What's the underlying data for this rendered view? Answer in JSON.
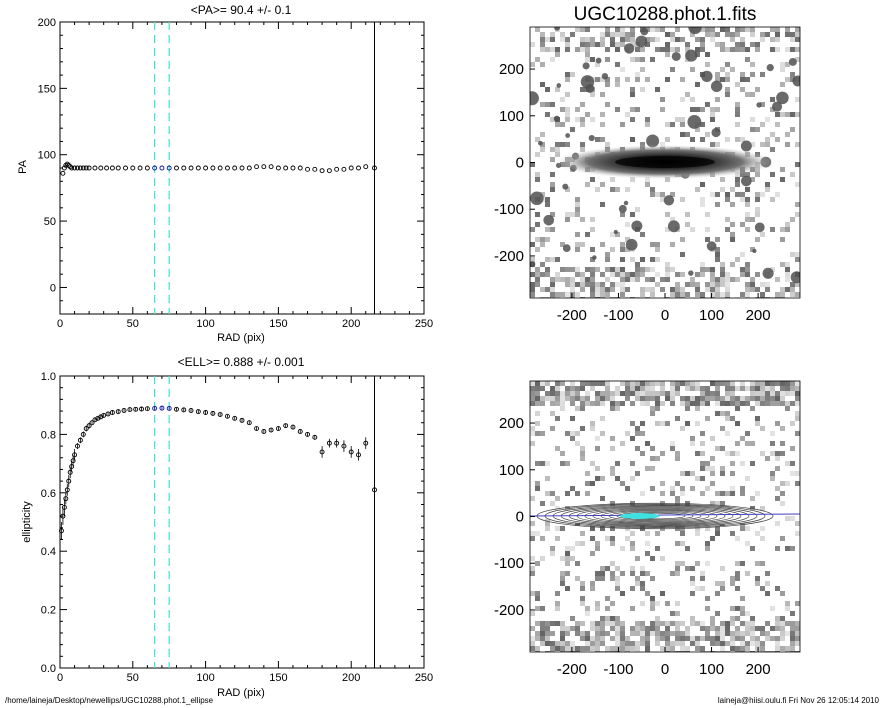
{
  "footer": {
    "path": "/home/laineja/Desktop/newellips/UGC10288.phot.1_ellipse",
    "user_time": "laineja@hiisi.oulu.fi  Fri Nov 26 12:05:14 2010"
  },
  "colors": {
    "axes": "#000000",
    "cut_lines": "#40e0d0",
    "fit_points": "#1010a0",
    "image_bg": "#808080",
    "contours": "#404040",
    "major_axis_line": "#4040c0",
    "image_center": "#40e0e0"
  },
  "chart_data": [
    {
      "type": "scatter",
      "title": "<PA>=  90.4 +/-   0.1",
      "xlabel": "RAD (pix)",
      "ylabel": "PA",
      "xlim": [
        0,
        250
      ],
      "ylim": [
        -20,
        200
      ],
      "xticks": [
        0,
        50,
        100,
        150,
        200,
        250
      ],
      "yticks": [
        0,
        50,
        100,
        150,
        200
      ],
      "dashed_vlines": [
        65,
        75
      ],
      "solid_vline": 216,
      "highlight_range": [
        65,
        75
      ],
      "x": [
        2,
        3,
        4,
        5,
        6,
        7,
        8,
        10,
        12,
        14,
        16,
        18,
        20,
        24,
        28,
        32,
        36,
        40,
        45,
        50,
        55,
        60,
        65,
        70,
        75,
        80,
        85,
        90,
        95,
        100,
        105,
        110,
        115,
        120,
        125,
        130,
        135,
        140,
        145,
        150,
        155,
        160,
        165,
        170,
        175,
        180,
        185,
        190,
        195,
        200,
        205,
        210,
        216
      ],
      "values": [
        86,
        90,
        92,
        93,
        92,
        91,
        90,
        90,
        90,
        90,
        90,
        90,
        90,
        90,
        90,
        90,
        90,
        90,
        90,
        90,
        90,
        90,
        90,
        90,
        90,
        90,
        90,
        90,
        90,
        90,
        90,
        90,
        90,
        90,
        90,
        90,
        91,
        91,
        91,
        90,
        90,
        90,
        90,
        89,
        89,
        88,
        88,
        89,
        89,
        90,
        90,
        91,
        90
      ]
    },
    {
      "type": "scatter",
      "title": "<ELL>= 0.888 +/-  0.001",
      "xlabel": "RAD (pix)",
      "ylabel": "ellipticity",
      "xlim": [
        0,
        250
      ],
      "ylim": [
        0.0,
        1.0
      ],
      "xticks": [
        0,
        50,
        100,
        150,
        200,
        250
      ],
      "yticks": [
        0.0,
        0.2,
        0.4,
        0.6,
        0.8,
        1.0
      ],
      "dashed_vlines": [
        65,
        75
      ],
      "solid_vline": 216,
      "highlight_range": [
        65,
        75
      ],
      "x": [
        1,
        2,
        3,
        4,
        5,
        6,
        7,
        8,
        9,
        10,
        12,
        14,
        16,
        18,
        20,
        22,
        24,
        26,
        28,
        30,
        33,
        36,
        40,
        44,
        48,
        52,
        56,
        60,
        65,
        70,
        75,
        80,
        85,
        90,
        95,
        100,
        105,
        110,
        115,
        120,
        125,
        130,
        135,
        140,
        145,
        150,
        155,
        160,
        165,
        170,
        175,
        180,
        185,
        190,
        195,
        200,
        205,
        210,
        216
      ],
      "values": [
        0.47,
        0.52,
        0.55,
        0.58,
        0.61,
        0.64,
        0.67,
        0.69,
        0.71,
        0.73,
        0.76,
        0.78,
        0.8,
        0.82,
        0.83,
        0.84,
        0.85,
        0.855,
        0.86,
        0.865,
        0.87,
        0.875,
        0.878,
        0.882,
        0.885,
        0.886,
        0.887,
        0.888,
        0.889,
        0.89,
        0.889,
        0.886,
        0.884,
        0.882,
        0.878,
        0.875,
        0.872,
        0.868,
        0.862,
        0.855,
        0.848,
        0.84,
        0.82,
        0.81,
        0.815,
        0.82,
        0.83,
        0.825,
        0.81,
        0.8,
        0.79,
        0.74,
        0.77,
        0.77,
        0.76,
        0.74,
        0.73,
        0.77,
        0.61
      ],
      "errors": [
        0.03,
        0.03,
        0.03,
        0.02,
        0.02,
        0.02,
        0.02,
        0.02,
        0.02,
        0.02,
        0.01,
        0.01,
        0.01,
        0.01,
        0.01,
        0.005,
        0.005,
        0.005,
        0.005,
        0.005,
        0.005,
        0.005,
        0.005,
        0.005,
        0.005,
        0.005,
        0.005,
        0.005,
        0.005,
        0.005,
        0.005,
        0.005,
        0.005,
        0.005,
        0.005,
        0.005,
        0.005,
        0.005,
        0.005,
        0.005,
        0.005,
        0.005,
        0.005,
        0.005,
        0.005,
        0.006,
        0.006,
        0.006,
        0.006,
        0.006,
        0.008,
        0.02,
        0.015,
        0.015,
        0.02,
        0.02,
        0.02,
        0.02,
        0.0
      ]
    },
    {
      "type": "heatmap",
      "title": "UGC10288.phot.1.fits",
      "xlim": [
        -290,
        290
      ],
      "ylim": [
        -290,
        290
      ],
      "xticks": [
        -200,
        -100,
        0,
        100,
        200
      ],
      "yticks": [
        -200,
        -100,
        0,
        100,
        200
      ]
    },
    {
      "type": "heatmap",
      "title": "",
      "xlim": [
        -290,
        290
      ],
      "ylim": [
        -290,
        290
      ],
      "xticks": [
        -200,
        -100,
        0,
        100,
        200
      ],
      "yticks": [
        -200,
        -100,
        0,
        100,
        200
      ]
    }
  ]
}
